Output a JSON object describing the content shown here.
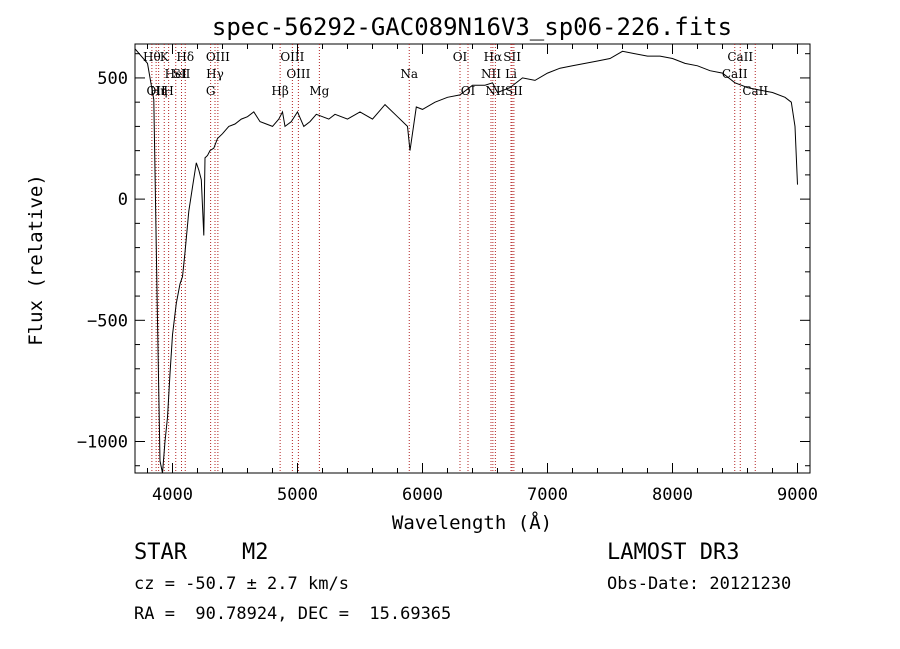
{
  "chart_data": {
    "type": "line",
    "title": "spec-56292-GAC089N16V3_sp06-226.fits",
    "xlabel": "Wavelength (Å)",
    "ylabel": "Flux (relative)",
    "xlim": [
      3700,
      9100
    ],
    "ylim": [
      -1130,
      640
    ],
    "xticks": [
      4000,
      5000,
      6000,
      7000,
      8000,
      9000
    ],
    "yticks": [
      -1000,
      -500,
      0,
      500
    ],
    "series": [
      {
        "name": "spectrum",
        "x": [
          3700,
          3800,
          3850,
          3880,
          3900,
          3920,
          3940,
          3960,
          3980,
          4000,
          4030,
          4060,
          4080,
          4100,
          4130,
          4160,
          4190,
          4210,
          4230,
          4250,
          4260,
          4280,
          4300,
          4330,
          4360,
          4400,
          4450,
          4500,
          4550,
          4600,
          4650,
          4700,
          4750,
          4800,
          4850,
          4880,
          4900,
          4950,
          5000,
          5050,
          5100,
          5150,
          5200,
          5250,
          5300,
          5400,
          5500,
          5600,
          5700,
          5800,
          5880,
          5900,
          5950,
          6000,
          6100,
          6200,
          6300,
          6400,
          6500,
          6560,
          6600,
          6700,
          6800,
          6900,
          7000,
          7100,
          7200,
          7300,
          7400,
          7500,
          7600,
          7700,
          7800,
          7900,
          8000,
          8100,
          8200,
          8300,
          8400,
          8500,
          8550,
          8600,
          8700,
          8800,
          8900,
          8950,
          8980,
          9000
        ],
        "y": [
          620,
          560,
          410,
          -500,
          -1080,
          -1130,
          -1000,
          -900,
          -720,
          -560,
          -430,
          -350,
          -320,
          -220,
          -50,
          50,
          150,
          120,
          80,
          -150,
          170,
          180,
          200,
          210,
          250,
          270,
          300,
          310,
          330,
          340,
          360,
          320,
          310,
          300,
          330,
          360,
          300,
          320,
          360,
          300,
          320,
          350,
          340,
          330,
          350,
          330,
          360,
          330,
          390,
          340,
          300,
          200,
          380,
          370,
          400,
          420,
          430,
          470,
          470,
          480,
          440,
          460,
          500,
          490,
          520,
          540,
          550,
          560,
          570,
          580,
          610,
          600,
          590,
          590,
          580,
          560,
          550,
          530,
          520,
          480,
          470,
          460,
          450,
          440,
          420,
          400,
          300,
          60
        ]
      }
    ],
    "lines": [
      {
        "x": 3835,
        "top": "Hθ",
        "mid": "",
        "bot": ""
      },
      {
        "x": 3869,
        "top": "",
        "mid": "",
        "bot": "OII"
      },
      {
        "x": 3889,
        "top": "",
        "mid": "",
        "bot": "Hη"
      },
      {
        "x": 3934,
        "top": "K",
        "mid": "",
        "bot": ""
      },
      {
        "x": 3969,
        "top": "",
        "mid": "",
        "bot": "H"
      },
      {
        "x": 4026,
        "top": "",
        "mid": "HeI",
        "bot": ""
      },
      {
        "x": 4072,
        "top": "",
        "mid": "SII",
        "bot": ""
      },
      {
        "x": 4102,
        "top": "Hδ",
        "mid": "",
        "bot": ""
      },
      {
        "x": 4305,
        "top": "",
        "mid": "",
        "bot": "G"
      },
      {
        "x": 4340,
        "top": "",
        "mid": "Hγ",
        "bot": ""
      },
      {
        "x": 4363,
        "top": "OIII",
        "mid": "",
        "bot": ""
      },
      {
        "x": 4861,
        "top": "",
        "mid": "",
        "bot": "Hβ"
      },
      {
        "x": 4959,
        "top": "OIII",
        "mid": "",
        "bot": ""
      },
      {
        "x": 5007,
        "top": "",
        "mid": "OIII",
        "bot": ""
      },
      {
        "x": 5175,
        "top": "",
        "mid": "",
        "bot": "Mg"
      },
      {
        "x": 5894,
        "top": "",
        "mid": "Na",
        "bot": ""
      },
      {
        "x": 6300,
        "top": "OI",
        "mid": "",
        "bot": ""
      },
      {
        "x": 6364,
        "top": "",
        "mid": "",
        "bot": "OI"
      },
      {
        "x": 6548,
        "top": "",
        "mid": "NII",
        "bot": ""
      },
      {
        "x": 6563,
        "top": "Hα",
        "mid": "",
        "bot": ""
      },
      {
        "x": 6583,
        "top": "",
        "mid": "",
        "bot": "NII"
      },
      {
        "x": 6708,
        "top": "",
        "mid": "Li",
        "bot": ""
      },
      {
        "x": 6717,
        "top": "SII",
        "mid": "",
        "bot": ""
      },
      {
        "x": 6731,
        "top": "",
        "mid": "",
        "bot": "SII"
      },
      {
        "x": 8498,
        "top": "",
        "mid": "CaII",
        "bot": ""
      },
      {
        "x": 8542,
        "top": "CaII",
        "mid": "",
        "bot": ""
      },
      {
        "x": 8662,
        "top": "",
        "mid": "",
        "bot": "CaII"
      }
    ]
  },
  "info": {
    "obj_class": "STAR",
    "subclass": "M2",
    "cz": "cz = -50.7 ± 2.7 km/s",
    "radec": "RA =  90.78924, DEC =  15.69365",
    "survey": "LAMOST DR3",
    "obsdate": "Obs-Date: 20121230"
  }
}
